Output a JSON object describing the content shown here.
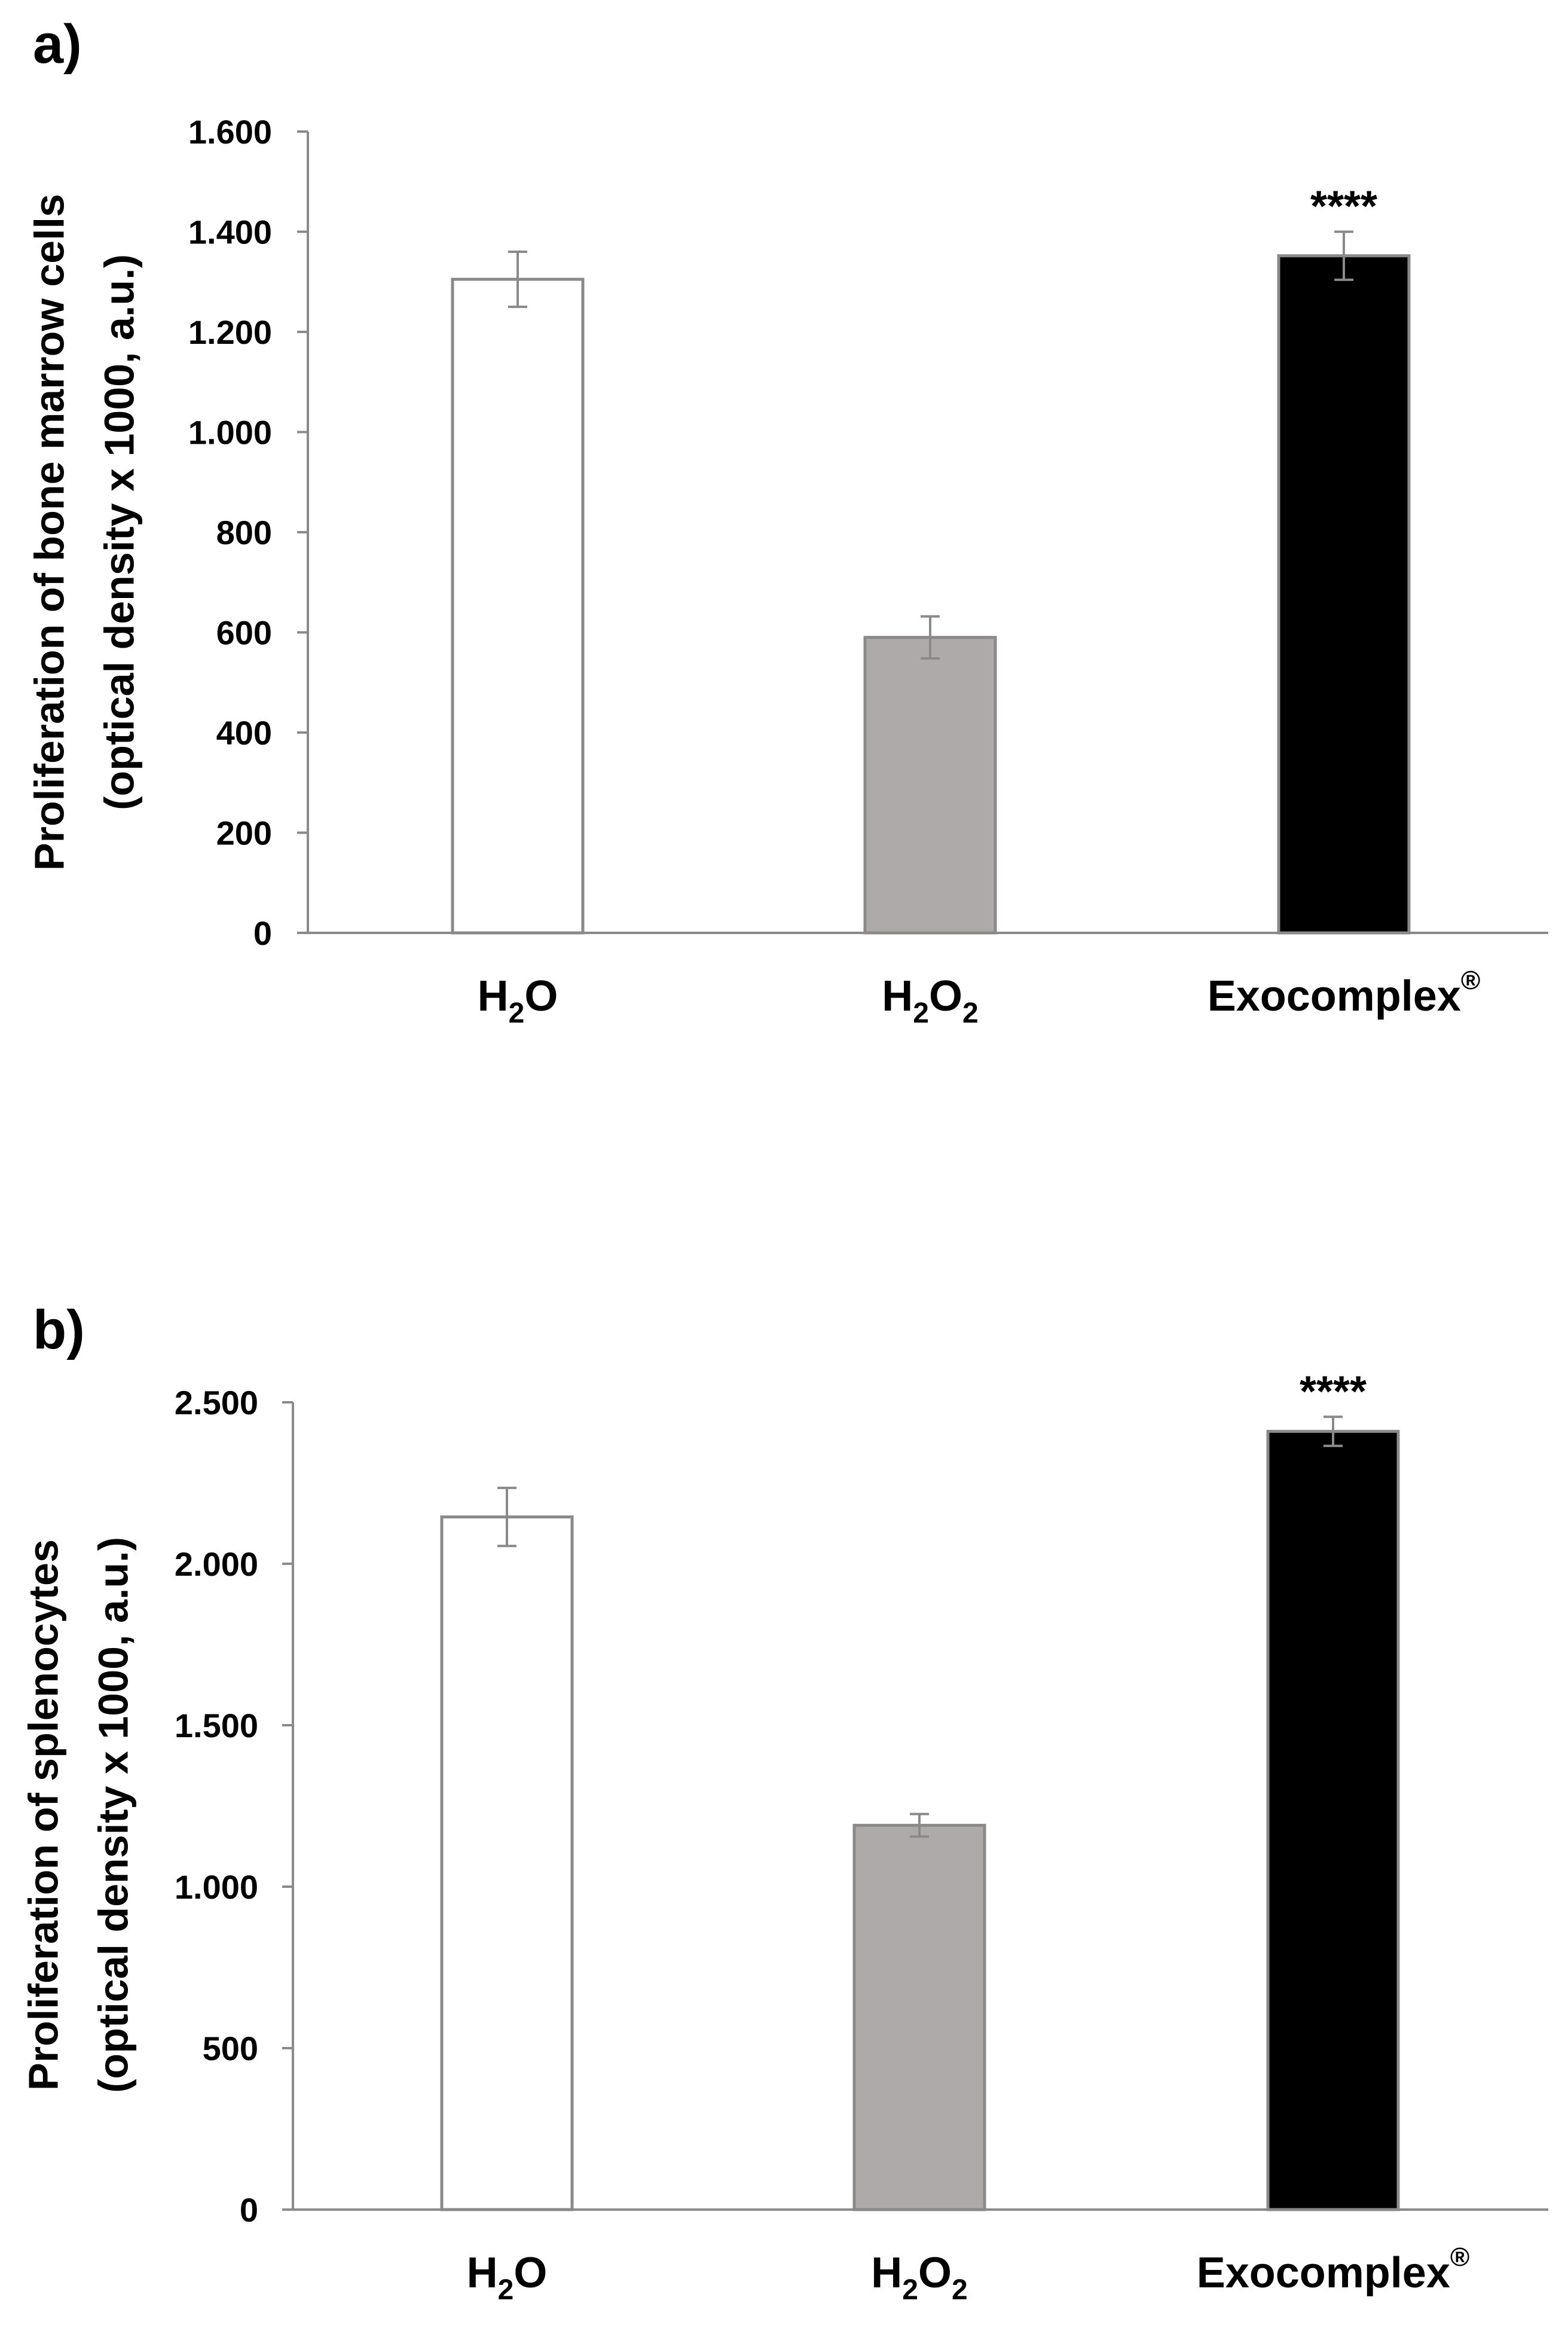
{
  "chart_data": [
    {
      "type": "bar",
      "panel_label": "a)",
      "categories": [
        {
          "base": "H",
          "sub": "2",
          "tail": "O",
          "tail_sub": "",
          "sup": ""
        },
        {
          "base": "H",
          "sub": "2",
          "tail": "O",
          "tail_sub": "2",
          "sup": ""
        },
        {
          "base": "Exocomplex",
          "sub": "",
          "tail": "",
          "tail_sub": "",
          "sup": "®"
        }
      ],
      "values": [
        1305,
        590,
        1352
      ],
      "errors": [
        55,
        42,
        48
      ],
      "colors": [
        "#ffffff",
        "#aeaaaa",
        "#000000"
      ],
      "ylabel_line1": "Proliferation of bone marrow cells",
      "ylabel_line2": "(optical density x 1000, a.u.)",
      "ylim": [
        0,
        1600
      ],
      "yticks": [
        0,
        200,
        400,
        600,
        800,
        1000,
        1200,
        1400,
        1600
      ],
      "ytick_labels": [
        "0",
        "200",
        "400",
        "600",
        "800",
        "1.000",
        "1.200",
        "1.400",
        "1.600"
      ],
      "annotations": [
        {
          "category_index": 2,
          "text": "****"
        }
      ]
    },
    {
      "type": "bar",
      "panel_label": "b)",
      "categories": [
        {
          "base": "H",
          "sub": "2",
          "tail": "O",
          "tail_sub": "",
          "sup": ""
        },
        {
          "base": "H",
          "sub": "2",
          "tail": "O",
          "tail_sub": "2",
          "sup": ""
        },
        {
          "base": "Exocomplex",
          "sub": "",
          "tail": "",
          "tail_sub": "",
          "sup": "®"
        }
      ],
      "values": [
        2145,
        1190,
        2410
      ],
      "errors": [
        90,
        35,
        45
      ],
      "colors": [
        "#ffffff",
        "#aeaaaa",
        "#000000"
      ],
      "ylabel_line1": "Proliferation of splenocytes",
      "ylabel_line2": "(optical density x 1000, a.u.)",
      "ylim": [
        0,
        2500
      ],
      "yticks": [
        0,
        500,
        1000,
        1500,
        2000,
        2500
      ],
      "ytick_labels": [
        "0",
        "500",
        "1.000",
        "1.500",
        "2.000",
        "2.500"
      ],
      "annotations": [
        {
          "category_index": 2,
          "text": "****"
        }
      ]
    }
  ]
}
